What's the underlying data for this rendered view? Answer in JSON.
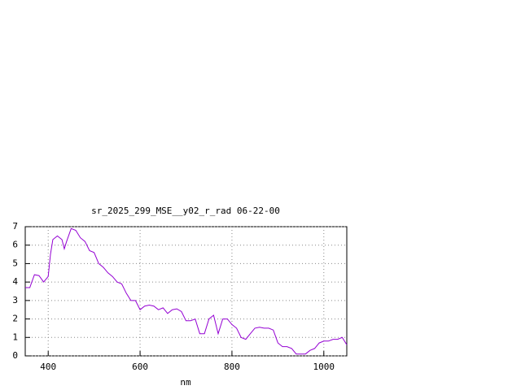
{
  "chart_data": {
    "type": "line",
    "title": "sr_2025_299_MSE__y02_r_rad 06-22-00",
    "x_label": "nm",
    "x": [
      350,
      360,
      370,
      380,
      390,
      400,
      405,
      410,
      420,
      430,
      435,
      440,
      450,
      460,
      470,
      480,
      490,
      500,
      510,
      520,
      530,
      540,
      550,
      560,
      570,
      580,
      590,
      600,
      610,
      620,
      630,
      640,
      650,
      660,
      670,
      680,
      690,
      700,
      710,
      720,
      730,
      740,
      750,
      760,
      770,
      780,
      790,
      800,
      810,
      820,
      830,
      840,
      850,
      860,
      870,
      880,
      890,
      900,
      910,
      920,
      930,
      940,
      950,
      960,
      970,
      980,
      990,
      1000,
      1010,
      1020,
      1030,
      1040,
      1050
    ],
    "series": [
      {
        "color": "#9400d3",
        "values": [
          3.7,
          3.7,
          4.4,
          4.35,
          4.0,
          4.3,
          5.5,
          6.3,
          6.5,
          6.3,
          5.8,
          6.2,
          6.9,
          6.8,
          6.4,
          6.2,
          5.7,
          5.6,
          5.0,
          4.8,
          4.5,
          4.3,
          4.0,
          3.9,
          3.4,
          3.0,
          3.0,
          2.5,
          2.7,
          2.75,
          2.7,
          2.5,
          2.6,
          2.3,
          2.5,
          2.55,
          2.4,
          1.9,
          1.9,
          2.0,
          1.2,
          1.2,
          2.0,
          2.2,
          1.2,
          2.0,
          2.0,
          1.7,
          1.5,
          1.0,
          0.9,
          1.2,
          1.5,
          1.55,
          1.5,
          1.5,
          1.4,
          0.7,
          0.5,
          0.5,
          0.4,
          0.1,
          0.1,
          0.1,
          0.3,
          0.4,
          0.7,
          0.8,
          0.8,
          0.9,
          0.9,
          1.0,
          0.6
        ]
      }
    ],
    "xlim": [
      350,
      1050
    ],
    "xticks": [
      400,
      600,
      800,
      1000
    ],
    "ylim": [
      0,
      7
    ],
    "yticks": [
      0,
      1,
      2,
      3,
      4,
      5,
      6,
      7
    ],
    "grid": true
  }
}
